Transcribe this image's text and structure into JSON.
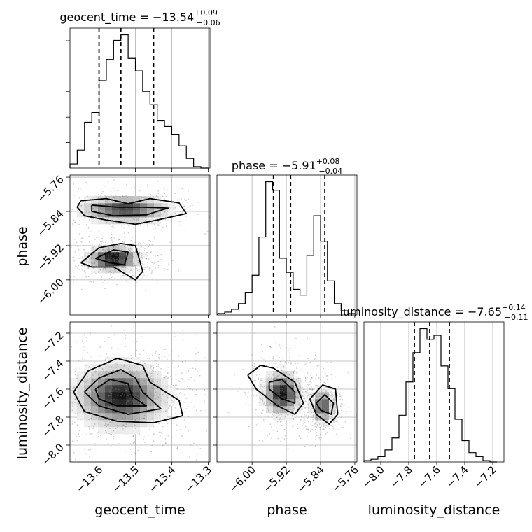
{
  "chart_data": {
    "type": "corner",
    "parameters": [
      "geocent_time",
      "phase",
      "luminosity_distance"
    ],
    "axis_labels": {
      "geocent_time": "geocent_time",
      "phase": "phase",
      "luminosity_distance": "luminosity_distance"
    },
    "ranges": {
      "geocent_time": [
        -13.68,
        -13.295
      ],
      "phase": [
        -6.082,
        -5.755
      ],
      "luminosity_distance": [
        -8.12,
        -7.12
      ]
    },
    "ticks": {
      "geocent_time": [
        -13.6,
        -13.5,
        -13.4,
        -13.3
      ],
      "phase": [
        -6.0,
        -5.92,
        -5.84,
        -5.76
      ],
      "luminosity_distance": [
        -8.0,
        -7.8,
        -7.6,
        -7.4,
        -7.2
      ]
    },
    "tick_labels": {
      "geocent_time": [
        "−13.6",
        "−13.5",
        "−13.4",
        "−13.3"
      ],
      "phase": [
        "−6.00",
        "−5.92",
        "−5.84",
        "−5.76"
      ],
      "luminosity_distance": [
        "−8.0",
        "−7.8",
        "−7.6",
        "−7.4",
        "−7.2"
      ]
    },
    "titles": {
      "geocent_time": {
        "name": "geocent_time",
        "value": "−13.54",
        "plus": "+0.09",
        "minus": "−0.06"
      },
      "phase": {
        "name": "phase",
        "value": "−5.91",
        "plus": "+0.08",
        "minus": "−0.04"
      },
      "luminosity_distance": {
        "name": "luminosity_distance",
        "value": "−7.65",
        "plus": "+0.14",
        "minus": "−0.11"
      }
    },
    "quantiles": {
      "geocent_time": [
        -13.6,
        -13.54,
        -13.45
      ],
      "phase": [
        -5.95,
        -5.91,
        -5.83
      ],
      "luminosity_distance": [
        -7.76,
        -7.65,
        -7.51
      ]
    },
    "histograms": {
      "geocent_time": {
        "edges": [
          -13.68,
          -13.66,
          -13.64,
          -13.62,
          -13.6,
          -13.58,
          -13.56,
          -13.54,
          -13.52,
          -13.5,
          -13.48,
          -13.46,
          -13.44,
          -13.42,
          -13.4,
          -13.38,
          -13.36,
          -13.34,
          -13.32,
          -13.3
        ],
        "counts": [
          0.03,
          0.13,
          0.33,
          0.4,
          0.63,
          0.78,
          0.92,
          0.96,
          0.79,
          0.7,
          0.55,
          0.46,
          0.34,
          0.3,
          0.24,
          0.16,
          0.07,
          0.01,
          0.0
        ]
      },
      "phase": {
        "edges": [
          -6.08,
          -6.064,
          -6.048,
          -6.032,
          -6.016,
          -6.0,
          -5.984,
          -5.968,
          -5.952,
          -5.936,
          -5.92,
          -5.904,
          -5.888,
          -5.872,
          -5.856,
          -5.84,
          -5.824,
          -5.808,
          -5.792,
          -5.776,
          -5.76
        ],
        "counts": [
          0.01,
          0.02,
          0.04,
          0.08,
          0.16,
          0.28,
          0.55,
          0.94,
          0.88,
          0.4,
          0.3,
          0.18,
          0.14,
          0.42,
          0.7,
          0.52,
          0.24,
          0.08,
          0.03,
          0.01
        ]
      },
      "luminosity_distance": {
        "edges": [
          -8.12,
          -8.07,
          -8.02,
          -7.97,
          -7.92,
          -7.87,
          -7.82,
          -7.77,
          -7.72,
          -7.67,
          -7.62,
          -7.57,
          -7.52,
          -7.47,
          -7.42,
          -7.37,
          -7.32,
          -7.27,
          -7.22,
          -7.17
        ],
        "counts": [
          0.01,
          0.02,
          0.04,
          0.09,
          0.18,
          0.35,
          0.6,
          0.82,
          1.0,
          0.92,
          0.95,
          0.72,
          0.55,
          0.32,
          0.16,
          0.07,
          0.04,
          0.01,
          0.0
        ]
      }
    },
    "pairs": [
      {
        "x": "geocent_time",
        "y": "phase",
        "modes": [
          {
            "x": -13.53,
            "y": -5.835,
            "sx": 0.07,
            "sy": 0.018,
            "weight": 0.45
          },
          {
            "x": -13.56,
            "y": -5.95,
            "sx": 0.04,
            "sy": 0.016,
            "weight": 0.55
          }
        ],
        "contours": [
          [
            [
              -13.65,
              -5.815
            ],
            [
              -13.58,
              -5.81
            ],
            [
              -13.52,
              -5.822
            ],
            [
              -13.46,
              -5.81
            ],
            [
              -13.38,
              -5.82
            ],
            [
              -13.36,
              -5.845
            ],
            [
              -13.44,
              -5.86
            ],
            [
              -13.5,
              -5.87
            ],
            [
              -13.58,
              -5.86
            ],
            [
              -13.64,
              -5.85
            ],
            [
              -13.66,
              -5.83
            ],
            [
              -13.65,
              -5.815
            ]
          ],
          [
            [
              -13.62,
              -5.825
            ],
            [
              -13.55,
              -5.83
            ],
            [
              -13.48,
              -5.83
            ],
            [
              -13.41,
              -5.832
            ],
            [
              -13.47,
              -5.848
            ],
            [
              -13.56,
              -5.85
            ],
            [
              -13.62,
              -5.84
            ],
            [
              -13.62,
              -5.825
            ]
          ],
          [
            [
              -13.65,
              -5.96
            ],
            [
              -13.6,
              -5.925
            ],
            [
              -13.54,
              -5.915
            ],
            [
              -13.5,
              -5.92
            ],
            [
              -13.48,
              -5.98
            ],
            [
              -13.5,
              -6.0
            ],
            [
              -13.56,
              -5.97
            ],
            [
              -13.62,
              -5.97
            ],
            [
              -13.65,
              -5.96
            ]
          ],
          [
            [
              -13.61,
              -5.95
            ],
            [
              -13.56,
              -5.93
            ],
            [
              -13.52,
              -5.935
            ],
            [
              -13.53,
              -5.965
            ],
            [
              -13.57,
              -5.96
            ],
            [
              -13.61,
              -5.95
            ]
          ]
        ]
      },
      {
        "x": "geocent_time",
        "y": "luminosity_distance",
        "modes": [
          {
            "x": -13.54,
            "y": -7.65,
            "sx": 0.07,
            "sy": 0.13,
            "weight": 1.0
          }
        ],
        "contours": [
          [
            [
              -13.67,
              -7.62
            ],
            [
              -13.63,
              -7.47
            ],
            [
              -13.55,
              -7.38
            ],
            [
              -13.48,
              -7.43
            ],
            [
              -13.46,
              -7.55
            ],
            [
              -13.38,
              -7.68
            ],
            [
              -13.37,
              -7.79
            ],
            [
              -13.45,
              -7.84
            ],
            [
              -13.55,
              -7.83
            ],
            [
              -13.64,
              -7.76
            ],
            [
              -13.67,
              -7.62
            ]
          ],
          [
            [
              -13.64,
              -7.62
            ],
            [
              -13.6,
              -7.52
            ],
            [
              -13.54,
              -7.46
            ],
            [
              -13.5,
              -7.52
            ],
            [
              -13.48,
              -7.62
            ],
            [
              -13.43,
              -7.74
            ],
            [
              -13.52,
              -7.78
            ],
            [
              -13.6,
              -7.72
            ],
            [
              -13.64,
              -7.62
            ]
          ],
          [
            [
              -13.61,
              -7.6
            ],
            [
              -13.57,
              -7.53
            ],
            [
              -13.52,
              -7.56
            ],
            [
              -13.51,
              -7.65
            ],
            [
              -13.47,
              -7.72
            ],
            [
              -13.55,
              -7.72
            ],
            [
              -13.6,
              -7.67
            ],
            [
              -13.61,
              -7.6
            ]
          ]
        ]
      },
      {
        "x": "phase",
        "y": "luminosity_distance",
        "modes": [
          {
            "x": -5.93,
            "y": -7.63,
            "sx": 0.025,
            "sy": 0.09,
            "weight": 0.55
          },
          {
            "x": -5.835,
            "y": -7.72,
            "sx": 0.015,
            "sy": 0.07,
            "weight": 0.45
          }
        ],
        "contours": [
          [
            [
              -6.01,
              -7.5
            ],
            [
              -5.98,
              -7.43
            ],
            [
              -5.95,
              -7.45
            ],
            [
              -5.9,
              -7.55
            ],
            [
              -5.88,
              -7.7
            ],
            [
              -5.9,
              -7.78
            ],
            [
              -5.94,
              -7.72
            ],
            [
              -5.99,
              -7.6
            ],
            [
              -6.01,
              -7.5
            ]
          ],
          [
            [
              -5.96,
              -7.55
            ],
            [
              -5.93,
              -7.53
            ],
            [
              -5.9,
              -7.62
            ],
            [
              -5.9,
              -7.7
            ],
            [
              -5.93,
              -7.67
            ],
            [
              -5.96,
              -7.6
            ],
            [
              -5.96,
              -7.55
            ]
          ],
          [
            [
              -5.865,
              -7.67
            ],
            [
              -5.835,
              -7.57
            ],
            [
              -5.805,
              -7.6
            ],
            [
              -5.8,
              -7.78
            ],
            [
              -5.82,
              -7.85
            ],
            [
              -5.85,
              -7.78
            ],
            [
              -5.865,
              -7.67
            ]
          ],
          [
            [
              -5.85,
              -7.7
            ],
            [
              -5.83,
              -7.64
            ],
            [
              -5.81,
              -7.7
            ],
            [
              -5.815,
              -7.78
            ],
            [
              -5.84,
              -7.75
            ],
            [
              -5.85,
              -7.7
            ]
          ]
        ]
      }
    ]
  }
}
